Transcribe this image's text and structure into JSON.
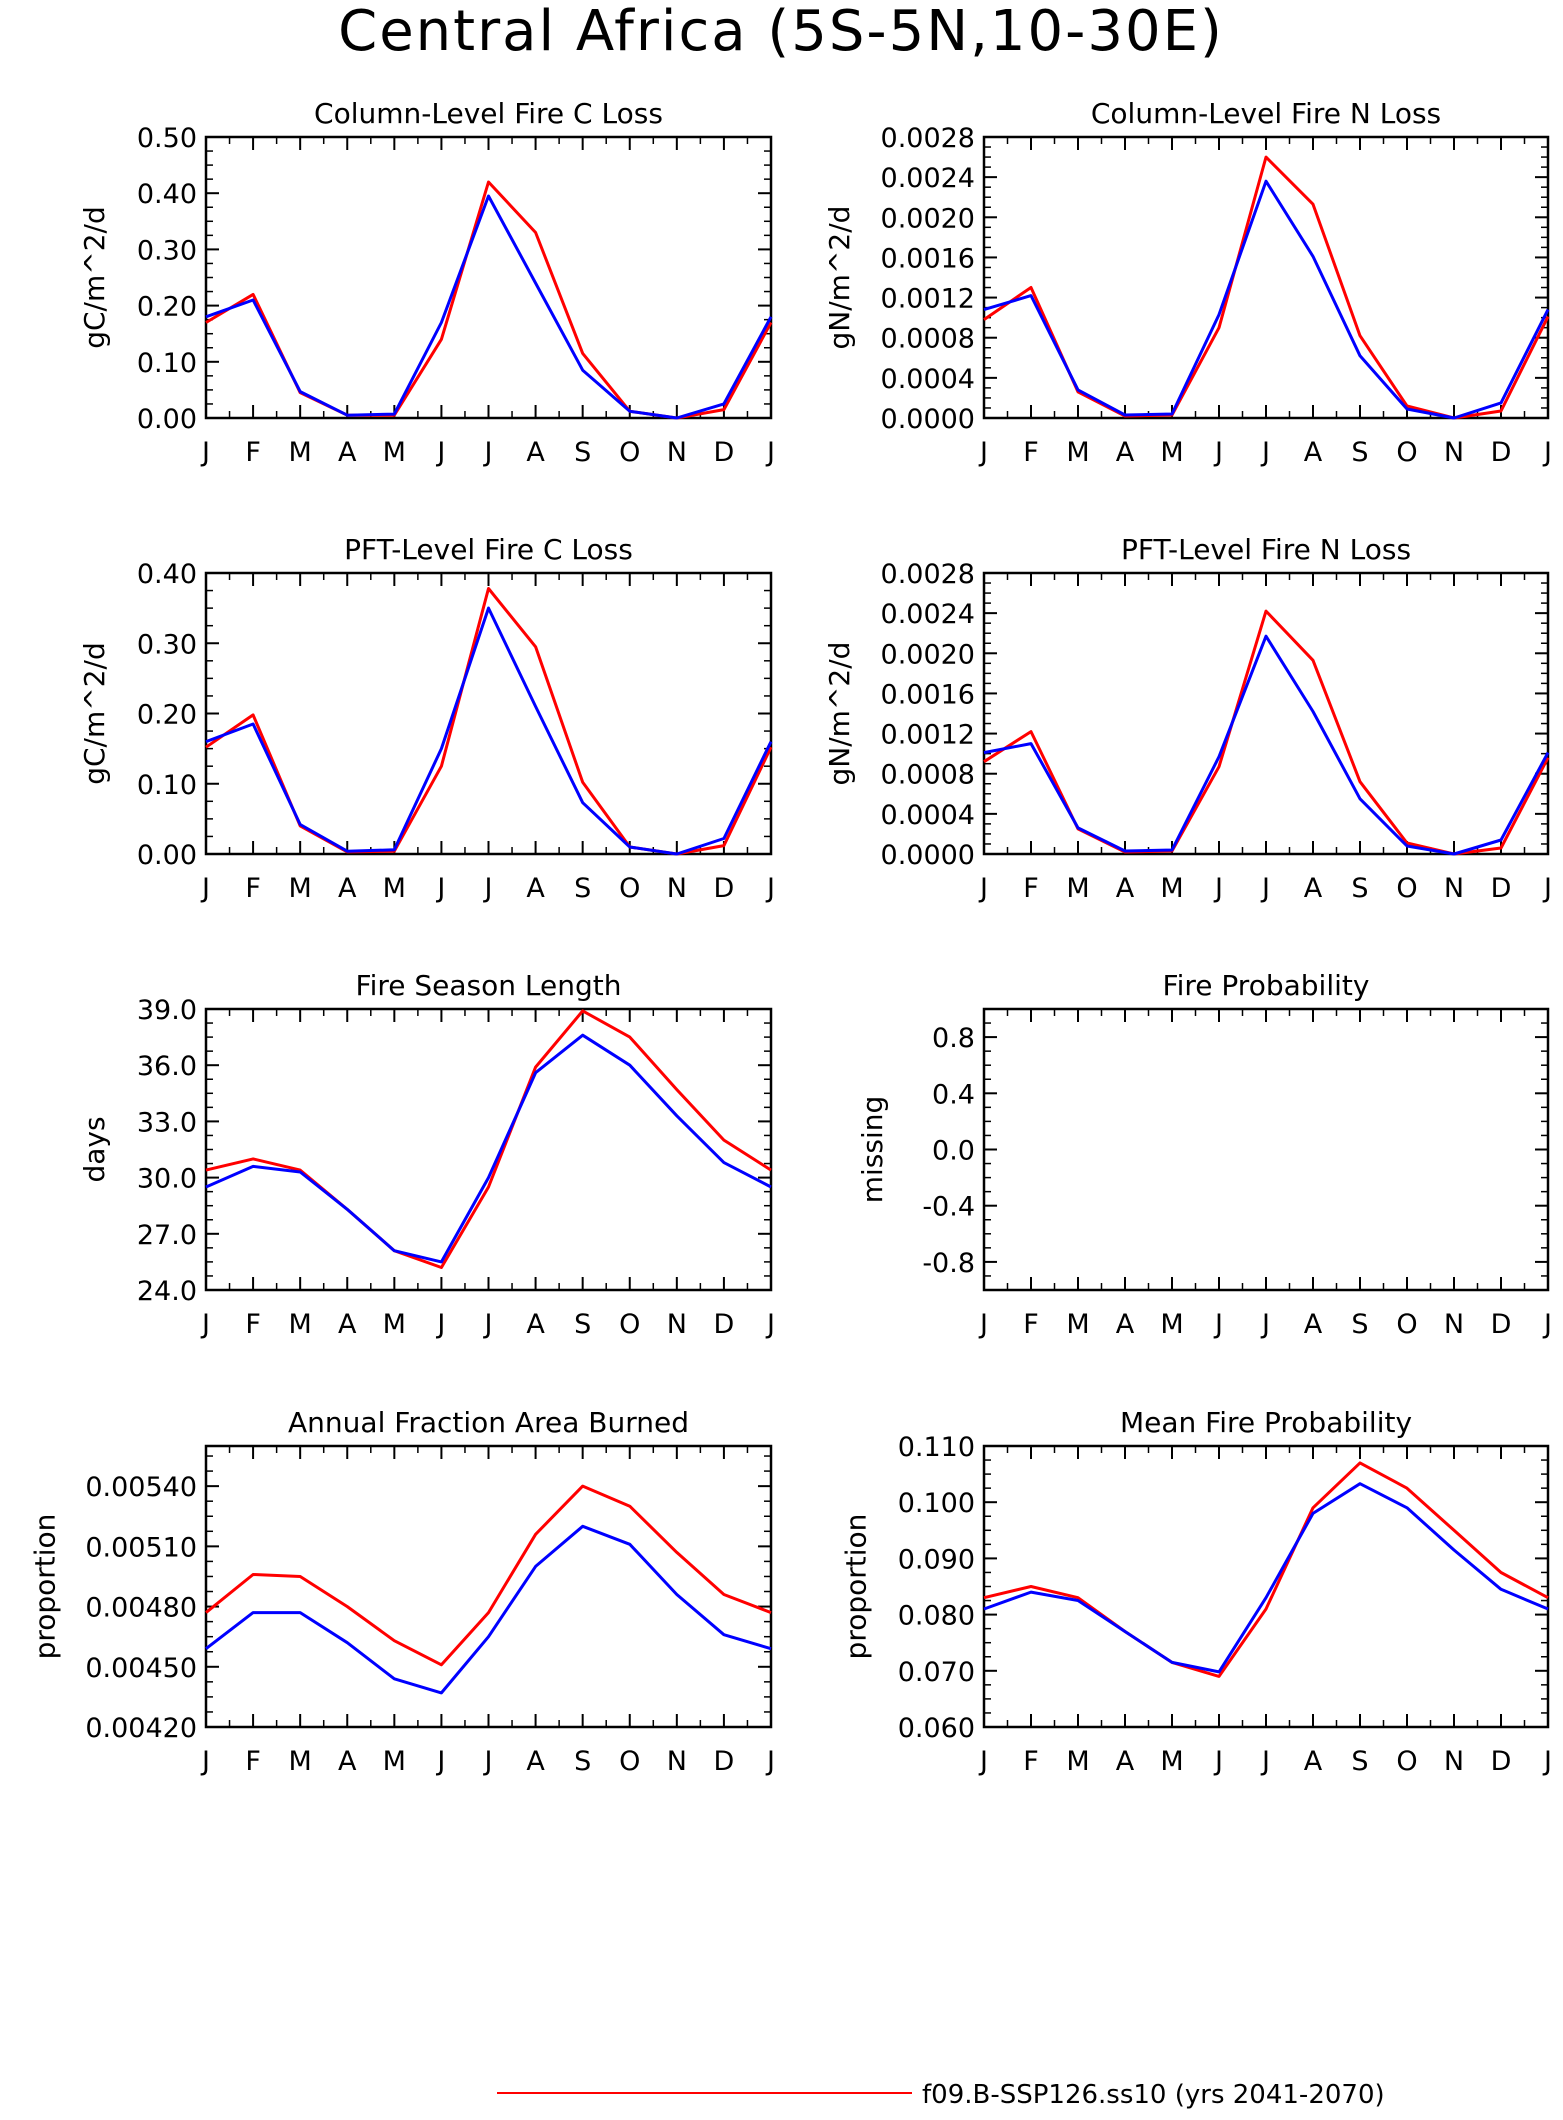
{
  "figure": {
    "title": "Central Africa (5S-5N,10-30E)",
    "legend": [
      {
        "label": "f09.B-SSP126.ss10 (yrs 2041-2070)",
        "color": "#ff0000"
      }
    ]
  },
  "chart_data": [
    {
      "type": "line",
      "title": "Column-Level Fire C Loss",
      "ylabel": "gC/m^2/d",
      "categories": [
        "J",
        "F",
        "M",
        "A",
        "M",
        "J",
        "J",
        "A",
        "S",
        "O",
        "N",
        "D",
        "J"
      ],
      "ylim": [
        0,
        0.5
      ],
      "yticks": [
        "0.00",
        "0.10",
        "0.20",
        "0.30",
        "0.40",
        "0.50"
      ],
      "series": [
        {
          "color": "#ff0000",
          "values": [
            0.17,
            0.22,
            0.045,
            0.005,
            0.005,
            0.14,
            0.42,
            0.33,
            0.115,
            0.012,
            0.0,
            0.015,
            0.17
          ]
        },
        {
          "color": "#0000ff",
          "values": [
            0.18,
            0.21,
            0.047,
            0.005,
            0.007,
            0.17,
            0.395,
            0.24,
            0.085,
            0.012,
            0.0,
            0.025,
            0.18
          ]
        }
      ]
    },
    {
      "type": "line",
      "title": "Column-Level Fire N Loss",
      "ylabel": "gN/m^2/d",
      "categories": [
        "J",
        "F",
        "M",
        "A",
        "M",
        "J",
        "J",
        "A",
        "S",
        "O",
        "N",
        "D",
        "J"
      ],
      "ylim": [
        0,
        0.0028
      ],
      "yticks": [
        "0.0000",
        "0.0004",
        "0.0008",
        "0.0012",
        "0.0016",
        "0.0020",
        "0.0024",
        "0.0028"
      ],
      "series": [
        {
          "color": "#ff0000",
          "values": [
            0.00098,
            0.0013,
            0.00026,
            2e-05,
            3e-05,
            0.0009,
            0.0026,
            0.00213,
            0.00082,
            0.00012,
            0.0,
            7e-05,
            0.00101
          ]
        },
        {
          "color": "#0000ff",
          "values": [
            0.00108,
            0.00122,
            0.00028,
            3e-05,
            4e-05,
            0.00103,
            0.00236,
            0.00161,
            0.00062,
            9e-05,
            0.0,
            0.00015,
            0.00108
          ]
        }
      ]
    },
    {
      "type": "line",
      "title": "PFT-Level Fire C Loss",
      "ylabel": "gC/m^2/d",
      "categories": [
        "J",
        "F",
        "M",
        "A",
        "M",
        "J",
        "J",
        "A",
        "S",
        "O",
        "N",
        "D",
        "J"
      ],
      "ylim": [
        0,
        0.4
      ],
      "yticks": [
        "0.00",
        "0.10",
        "0.20",
        "0.30",
        "0.40"
      ],
      "series": [
        {
          "color": "#ff0000",
          "values": [
            0.152,
            0.198,
            0.04,
            0.003,
            0.004,
            0.125,
            0.378,
            0.295,
            0.102,
            0.01,
            0.0,
            0.012,
            0.152
          ]
        },
        {
          "color": "#0000ff",
          "values": [
            0.16,
            0.185,
            0.042,
            0.004,
            0.006,
            0.15,
            0.35,
            0.21,
            0.073,
            0.01,
            0.0,
            0.022,
            0.16
          ]
        }
      ]
    },
    {
      "type": "line",
      "title": "PFT-Level Fire N Loss",
      "ylabel": "gN/m^2/d",
      "categories": [
        "J",
        "F",
        "M",
        "A",
        "M",
        "J",
        "J",
        "A",
        "S",
        "O",
        "N",
        "D",
        "J"
      ],
      "ylim": [
        0,
        0.0028
      ],
      "yticks": [
        "0.0000",
        "0.0004",
        "0.0008",
        "0.0012",
        "0.0016",
        "0.0020",
        "0.0024",
        "0.0028"
      ],
      "series": [
        {
          "color": "#ff0000",
          "values": [
            0.00092,
            0.00122,
            0.00025,
            2e-05,
            3e-05,
            0.00087,
            0.00242,
            0.00193,
            0.00072,
            0.00011,
            0.0,
            6e-05,
            0.00096
          ]
        },
        {
          "color": "#0000ff",
          "values": [
            0.00101,
            0.0011,
            0.00026,
            3e-05,
            4e-05,
            0.00097,
            0.00217,
            0.00142,
            0.00055,
            8e-05,
            0.0,
            0.00014,
            0.00101
          ]
        }
      ]
    },
    {
      "type": "line",
      "title": "Fire Season Length",
      "ylabel": "days",
      "categories": [
        "J",
        "F",
        "M",
        "A",
        "M",
        "J",
        "J",
        "A",
        "S",
        "O",
        "N",
        "D",
        "J"
      ],
      "ylim": [
        24,
        39
      ],
      "yticks": [
        "24.0",
        "27.0",
        "30.0",
        "33.0",
        "36.0",
        "39.0"
      ],
      "series": [
        {
          "color": "#ff0000",
          "values": [
            30.4,
            31.0,
            30.4,
            28.3,
            26.1,
            25.2,
            29.5,
            35.9,
            38.9,
            37.5,
            34.7,
            32.0,
            30.4
          ]
        },
        {
          "color": "#0000ff",
          "values": [
            29.5,
            30.6,
            30.3,
            28.3,
            26.1,
            25.5,
            30.0,
            35.6,
            37.6,
            36.0,
            33.3,
            30.8,
            29.5
          ]
        }
      ]
    },
    {
      "type": "line",
      "title": "Fire Probability",
      "ylabel": "missing",
      "categories": [
        "J",
        "F",
        "M",
        "A",
        "M",
        "J",
        "J",
        "A",
        "S",
        "O",
        "N",
        "D",
        "J"
      ],
      "ylim": [
        -1,
        1
      ],
      "yticks": [
        "-0.8",
        "-0.4",
        "0.0",
        "0.4",
        "0.8"
      ],
      "ytick_values": [
        -0.8,
        -0.4,
        0,
        0.4,
        0.8
      ],
      "series": []
    },
    {
      "type": "line",
      "title": "Annual Fraction Area Burned",
      "ylabel": "proportion",
      "categories": [
        "J",
        "F",
        "M",
        "A",
        "M",
        "J",
        "J",
        "A",
        "S",
        "O",
        "N",
        "D",
        "J"
      ],
      "ylim": [
        0.0042,
        0.0056
      ],
      "yticks": [
        "0.00420",
        "0.00450",
        "0.00480",
        "0.00510",
        "0.00540"
      ],
      "series": [
        {
          "color": "#ff0000",
          "values": [
            0.00477,
            0.00496,
            0.00495,
            0.0048,
            0.00463,
            0.00451,
            0.00477,
            0.00516,
            0.0054,
            0.0053,
            0.00507,
            0.00486,
            0.00477
          ]
        },
        {
          "color": "#0000ff",
          "values": [
            0.00459,
            0.00477,
            0.00477,
            0.00462,
            0.00444,
            0.00437,
            0.00465,
            0.005,
            0.0052,
            0.00511,
            0.00486,
            0.00466,
            0.00459
          ]
        }
      ]
    },
    {
      "type": "line",
      "title": "Mean Fire Probability",
      "ylabel": "proportion",
      "categories": [
        "J",
        "F",
        "M",
        "A",
        "M",
        "J",
        "J",
        "A",
        "S",
        "O",
        "N",
        "D",
        "J"
      ],
      "ylim": [
        0.06,
        0.11
      ],
      "yticks": [
        "0.060",
        "0.070",
        "0.080",
        "0.090",
        "0.100",
        "0.110"
      ],
      "series": [
        {
          "color": "#ff0000",
          "values": [
            0.083,
            0.085,
            0.083,
            0.077,
            0.0715,
            0.069,
            0.081,
            0.099,
            0.107,
            0.1025,
            0.095,
            0.0875,
            0.083
          ]
        },
        {
          "color": "#0000ff",
          "values": [
            0.081,
            0.084,
            0.0825,
            0.077,
            0.0715,
            0.0698,
            0.083,
            0.098,
            0.1033,
            0.099,
            0.0915,
            0.0845,
            0.081
          ]
        }
      ]
    }
  ]
}
